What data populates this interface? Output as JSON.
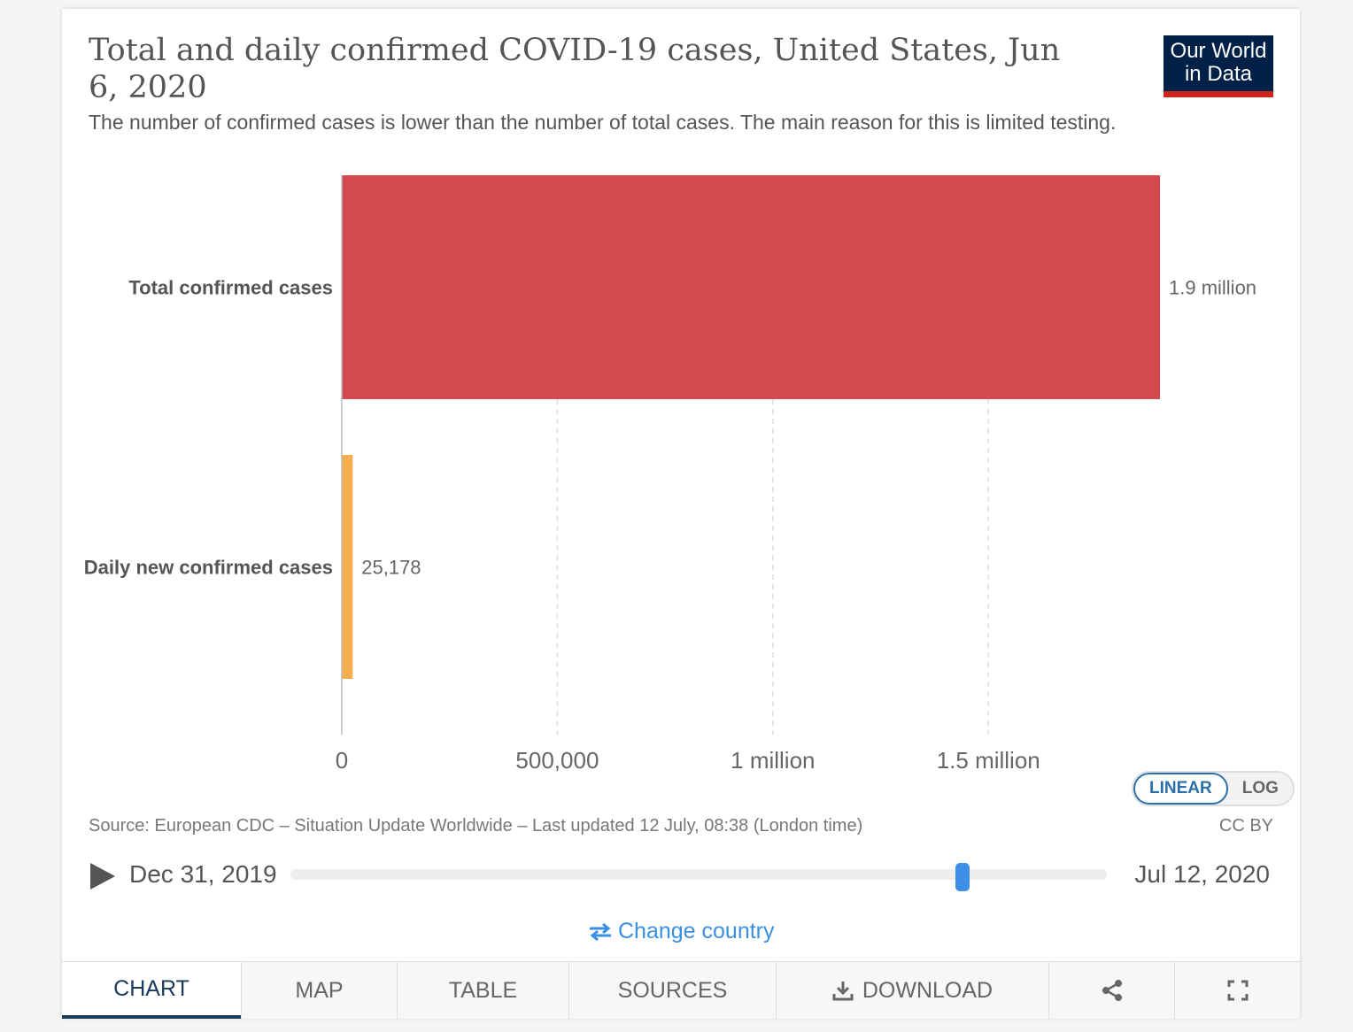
{
  "title": "Total and daily confirmed COVID-19 cases, United States, Jun 6, 2020",
  "subtitle": "The number of confirmed cases is lower than the number of total cases. The main reason for this is limited testing.",
  "logo": {
    "line1": "Our World",
    "line2": "in Data"
  },
  "chart_data": {
    "type": "bar",
    "orientation": "horizontal",
    "categories": [
      "Total confirmed cases",
      "Daily new confirmed cases"
    ],
    "values": [
      1898000,
      25178
    ],
    "value_labels": [
      "1.9 million",
      "25,178"
    ],
    "colors": [
      "#d4494c",
      "#f5ae4e"
    ],
    "xlim": [
      0,
      1898000
    ],
    "x_ticks": [
      0,
      500000,
      1000000,
      1500000
    ],
    "x_tick_labels": [
      "0",
      "500,000",
      "1 million",
      "1.5 million"
    ],
    "grid": "vertical dashed",
    "title": "Total and daily confirmed COVID-19 cases, United States, Jun 6, 2020",
    "xlabel": "",
    "ylabel": ""
  },
  "scale_toggle": {
    "linear": "LINEAR",
    "log": "LOG",
    "selected": "LINEAR"
  },
  "source": "Source: European CDC – Situation Update Worldwide – Last updated 12 July, 08:38 (London time)",
  "license": "CC BY",
  "timeline": {
    "start": "Dec 31, 2019",
    "end": "Jul 12, 2020",
    "position": 0.823
  },
  "change_country": "Change country",
  "tabs": [
    {
      "label": "CHART",
      "active": true
    },
    {
      "label": "MAP"
    },
    {
      "label": "TABLE"
    },
    {
      "label": "SOURCES"
    },
    {
      "label": "DOWNLOAD",
      "icon": "download-icon"
    },
    {
      "label": "",
      "icon": "share-icon"
    },
    {
      "label": "",
      "icon": "fullscreen-icon"
    }
  ]
}
